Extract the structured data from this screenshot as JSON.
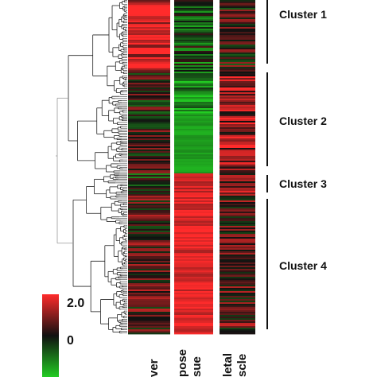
{
  "chart_data": {
    "type": "heatmap",
    "tissues": [
      "Liver",
      "Adipose tissue",
      "Skeletal muscle"
    ],
    "tissue_label_fragments": [
      {
        "lines": [
          "ver"
        ]
      },
      {
        "lines": [
          "pose",
          "sue"
        ]
      },
      {
        "lines": [
          "letal",
          "scle"
        ]
      }
    ],
    "clusters": [
      {
        "label": "Cluster 1",
        "profile": {
          "Liver": 1.8,
          "Adipose tissue": -0.6,
          "Skeletal muscle": 0.2
        }
      },
      {
        "label": "Cluster 2",
        "profile": {
          "Liver": 0.1,
          "Adipose tissue": -1.5,
          "Skeletal muscle": 1.0
        }
      },
      {
        "label": "Cluster 3",
        "profile": {
          "Liver": -0.4,
          "Adipose tissue": 1.6,
          "Skeletal muscle": 0.9
        }
      },
      {
        "label": "Cluster 4",
        "profile": {
          "Liver": 0.4,
          "Adipose tissue": 1.7,
          "Skeletal muscle": 0.5
        }
      }
    ],
    "color_scale": {
      "max_label": "2.0",
      "mid_label": "0",
      "max_color": "#ff2b2b",
      "mid_color": "#111111",
      "min_color": "#22cc22"
    },
    "dendrogram": true
  }
}
